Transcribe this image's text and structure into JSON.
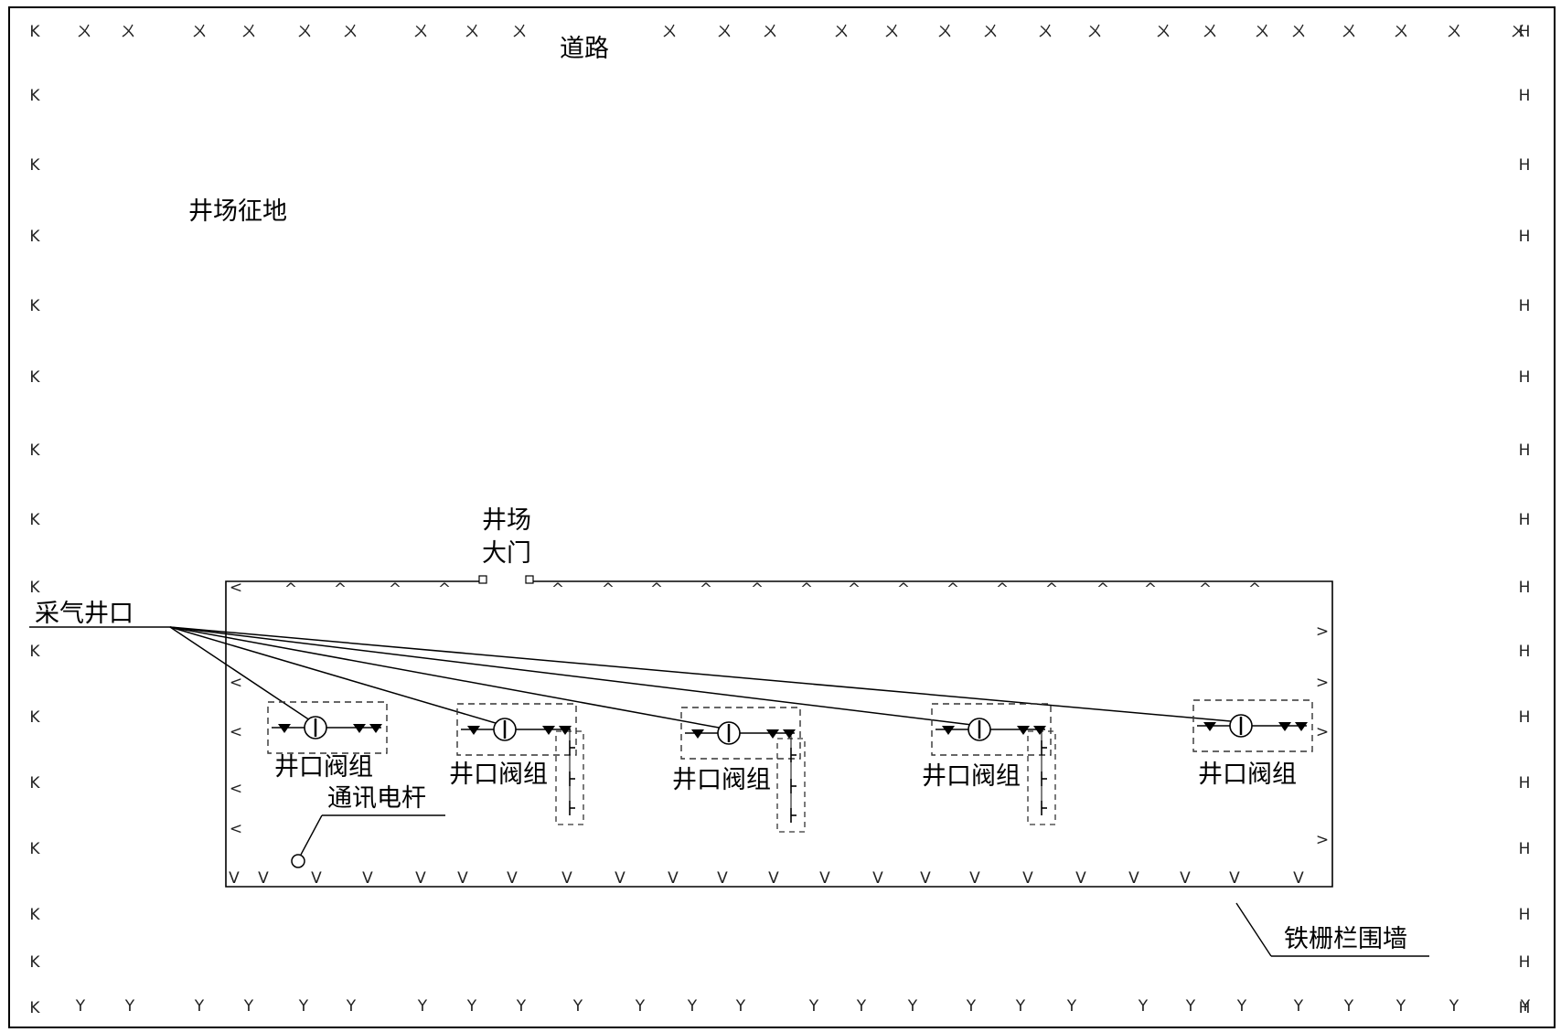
{
  "labels": {
    "road": "道路",
    "land": "井场征地",
    "gate": "井场\n大门",
    "gas_wellhead": "采气井口",
    "comm_pole": "通讯电杆",
    "iron_fence": "铁栅栏围墙"
  },
  "valve_groups": [
    {
      "label": "井口阀组"
    },
    {
      "label": "井口阀组"
    },
    {
      "label": "井口阀组"
    },
    {
      "label": "井口阀组"
    },
    {
      "label": "井口阀组"
    }
  ],
  "symbols": {
    "road_top": "ㄨ",
    "road_bottom": "Y",
    "road_left": "K",
    "road_right": "H",
    "fence_top": "^",
    "fence_bottom": "V",
    "fence_left": "<",
    "fence_right": ">"
  },
  "colors": {
    "line": "#000000",
    "dashed": "#333333"
  }
}
